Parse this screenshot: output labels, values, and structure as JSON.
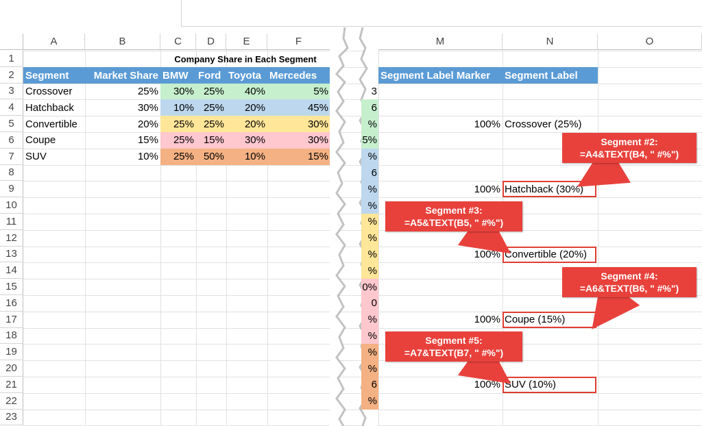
{
  "columns_left": [
    "A",
    "B",
    "C",
    "D",
    "E",
    "F"
  ],
  "columns_right": [
    "M",
    "N",
    "O"
  ],
  "rows": [
    "1",
    "2",
    "3",
    "4",
    "5",
    "6",
    "7",
    "8",
    "9",
    "10",
    "11",
    "12",
    "13",
    "14",
    "15",
    "16",
    "17",
    "18",
    "19",
    "20",
    "21",
    "22",
    "23"
  ],
  "title": "Company Share in Each Segment",
  "headers": {
    "segment": "Segment",
    "market_share": "Market Share",
    "bmw": "BMW",
    "ford": "Ford",
    "toyota": "Toyota",
    "mercedes": "Mercedes",
    "label_marker": "Segment Label Marker",
    "label": "Segment Label"
  },
  "table": [
    {
      "segment": "Crossover",
      "share": "25%",
      "bmw": "30%",
      "ford": "25%",
      "toyota": "40%",
      "mercedes": "5%",
      "color": "#c6efce"
    },
    {
      "segment": "Hatchback",
      "share": "30%",
      "bmw": "10%",
      "ford": "25%",
      "toyota": "20%",
      "mercedes": "45%",
      "color": "#bdd7ee"
    },
    {
      "segment": "Convertible",
      "share": "20%",
      "bmw": "25%",
      "ford": "25%",
      "toyota": "20%",
      "mercedes": "30%",
      "color": "#ffe699"
    },
    {
      "segment": "Coupe",
      "share": "15%",
      "bmw": "25%",
      "ford": "15%",
      "toyota": "30%",
      "mercedes": "30%",
      "color": "#ffc7ce"
    },
    {
      "segment": "SUV",
      "share": "10%",
      "bmw": "25%",
      "ford": "50%",
      "toyota": "10%",
      "mercedes": "15%",
      "color": "#f4b183"
    }
  ],
  "labels": [
    {
      "marker": "100%",
      "label": "Crossover (25%)"
    },
    {
      "marker": "100%",
      "label": "Hatchback (30%)"
    },
    {
      "marker": "100%",
      "label": "Convertible (20%)"
    },
    {
      "marker": "100%",
      "label": "Coupe (15%)"
    },
    {
      "marker": "100%",
      "label": "SUV (10%)"
    }
  ],
  "torn_fragments": [
    "3",
    "6",
    "%",
    "5%",
    "%",
    "6",
    "%",
    "%",
    "%",
    "%",
    "%",
    "%",
    "0%",
    "0",
    "%",
    "%",
    "%",
    "%",
    "6",
    "%"
  ],
  "callouts": [
    {
      "title": "Segment #2:",
      "formula": "=A4&TEXT(B4, \" #%\")"
    },
    {
      "title": "Segment #3:",
      "formula": "=A5&TEXT(B5, \" #%\")"
    },
    {
      "title": "Segment #4:",
      "formula": "=A6&TEXT(B6, \" #%\")"
    },
    {
      "title": "Segment #5:",
      "formula": "=A7&TEXT(B7, \" #%\")"
    }
  ],
  "colors": {
    "header_blue": "#5b9bd5",
    "callout_red": "#e8413c"
  }
}
